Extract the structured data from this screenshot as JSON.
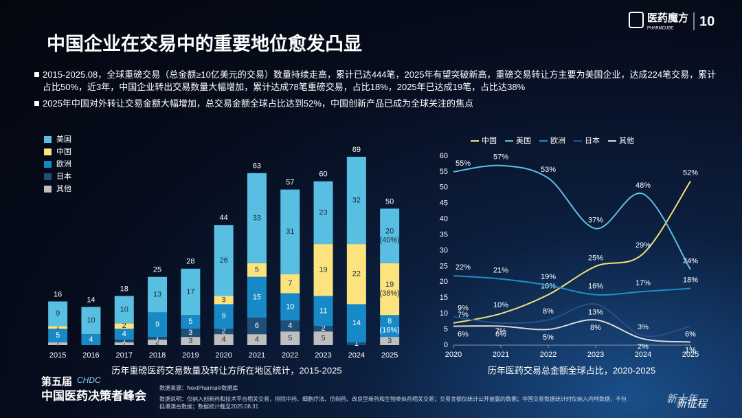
{
  "header": {
    "title": "中国企业在交易中的重要地位愈发凸显",
    "logo": "医药魔方",
    "logo_sub": "PHARMCUBE",
    "badge": "10"
  },
  "bullets": [
    "2015-2025.08，全球重磅交易（总金额≥10亿美元的交易）数量持续走高，累计已达444笔，2025年有望突破新高，重磅交易转让方主要为美国企业，达成224笔交易，累计占比50%，近3年，中国企业转出交易数量大幅增加，累计达成78笔重磅交易，占比18%，2025年已达成19笔，占比达38%",
    "2025年中国对外转让交易金额大幅增加，总交易金额全球占比达到52%，中国创新产品已成为全球关注的焦点"
  ],
  "chart_data": [
    {
      "type": "bar",
      "stacked": true,
      "legend": "top-left",
      "caption": "历年重磅医药交易数量及转让方所在地区统计，2015-2025",
      "categories": [
        "2015",
        "2016",
        "2017",
        "2018",
        "2019",
        "2020",
        "2021",
        "2022",
        "2023",
        "2024",
        "2025"
      ],
      "series": [
        {
          "name": "其他",
          "color": "#bfbfbf",
          "values": [
            1,
            null,
            1,
            2,
            3,
            4,
            4,
            5,
            5,
            null,
            3
          ],
          "value_labels": [
            null,
            null,
            null,
            null,
            null,
            null,
            null,
            null,
            null,
            null,
            null
          ]
        },
        {
          "name": "日本",
          "color": "#1f4e79",
          "values": [
            null,
            null,
            1,
            1,
            3,
            2,
            6,
            4,
            2,
            1,
            null
          ],
          "value_labels": [
            null,
            null,
            null,
            null,
            null,
            null,
            null,
            null,
            null,
            null,
            null
          ]
        },
        {
          "name": "欧洲",
          "color": "#1789c6",
          "values": [
            5,
            4,
            4,
            9,
            5,
            9,
            15,
            10,
            11,
            14,
            8
          ],
          "value_labels": [
            null,
            null,
            null,
            null,
            null,
            null,
            null,
            null,
            null,
            null,
            "8 (16%)"
          ]
        },
        {
          "name": "中国",
          "color": "#fce37e",
          "values": [
            1,
            null,
            2,
            null,
            null,
            3,
            5,
            7,
            19,
            22,
            19
          ],
          "value_labels": [
            null,
            null,
            null,
            null,
            null,
            null,
            null,
            null,
            null,
            null,
            "19 (38%)"
          ]
        },
        {
          "name": "美国",
          "color": "#58bfe3",
          "values": [
            9,
            10,
            10,
            13,
            17,
            26,
            33,
            31,
            23,
            32,
            20
          ],
          "value_labels": [
            null,
            null,
            null,
            null,
            null,
            null,
            null,
            null,
            null,
            null,
            "20 (40%)"
          ]
        }
      ],
      "totals": [
        16,
        14,
        18,
        25,
        28,
        44,
        63,
        57,
        60,
        69,
        50
      ]
    },
    {
      "type": "line",
      "legend": "top",
      "grid": false,
      "caption": "历年医药交易总金额全球占比，2020-2025",
      "x": [
        2020,
        2021,
        2022,
        2023,
        2024,
        2025
      ],
      "xlim": [
        2020,
        2025
      ],
      "xticks": [
        2020,
        2021,
        2022,
        2023,
        2024,
        2025
      ],
      "ylim": [
        0,
        60
      ],
      "yticks": [
        0,
        5,
        10,
        15,
        20,
        25,
        30,
        35,
        40,
        45,
        50,
        55,
        60
      ],
      "series": [
        {
          "name": "中国",
          "color": "#f3df7a",
          "values": [
            7,
            10,
            16,
            25,
            29,
            52
          ],
          "value_labels": [
            "7%",
            "10%",
            "16%",
            "25%",
            "29%",
            "52%"
          ]
        },
        {
          "name": "美国",
          "color": "#5cbfe2",
          "values": [
            55,
            57,
            53,
            37,
            48,
            24
          ],
          "value_labels": [
            "55%",
            "57%",
            "53%",
            "37%",
            "48%",
            "24%"
          ]
        },
        {
          "name": "欧洲",
          "color": "#1d8fc4",
          "values": [
            22,
            21,
            19,
            16,
            17,
            18
          ],
          "value_labels": [
            "22%",
            "21%",
            "19%",
            "16%",
            "17%",
            "18%"
          ]
        },
        {
          "name": "日本",
          "color": "#2a4f86",
          "values": [
            9,
            7,
            8,
            13,
            3,
            6
          ],
          "value_labels": [
            "9%",
            "7%",
            "8%",
            "13%",
            "3%",
            "6%"
          ]
        },
        {
          "name": "其他",
          "color": "#d9d9d9",
          "values": [
            6,
            6,
            5,
            8,
            2,
            1
          ],
          "value_labels": [
            "6%",
            "6%",
            "5%",
            "8%",
            "2%",
            "1%"
          ]
        }
      ]
    }
  ],
  "footer": {
    "edition": "第五届",
    "code": "CHDC",
    "event": "中国医药决策者峰会",
    "source": "数据来源：NextPharma®数据库",
    "note": "数据说明：仅纳入创新药和技术平台相关交易，排除中药、细胞疗法、仿制药、改良型新药和生物类似药相关交易；交易金额仅统计公开披露的数据；中国交易数据统计时仅纳入内地数据，不包括港澳台数据；数据统计截至2025.08.31",
    "slogan_1": "新十年",
    "slogan_2": "新征程"
  }
}
